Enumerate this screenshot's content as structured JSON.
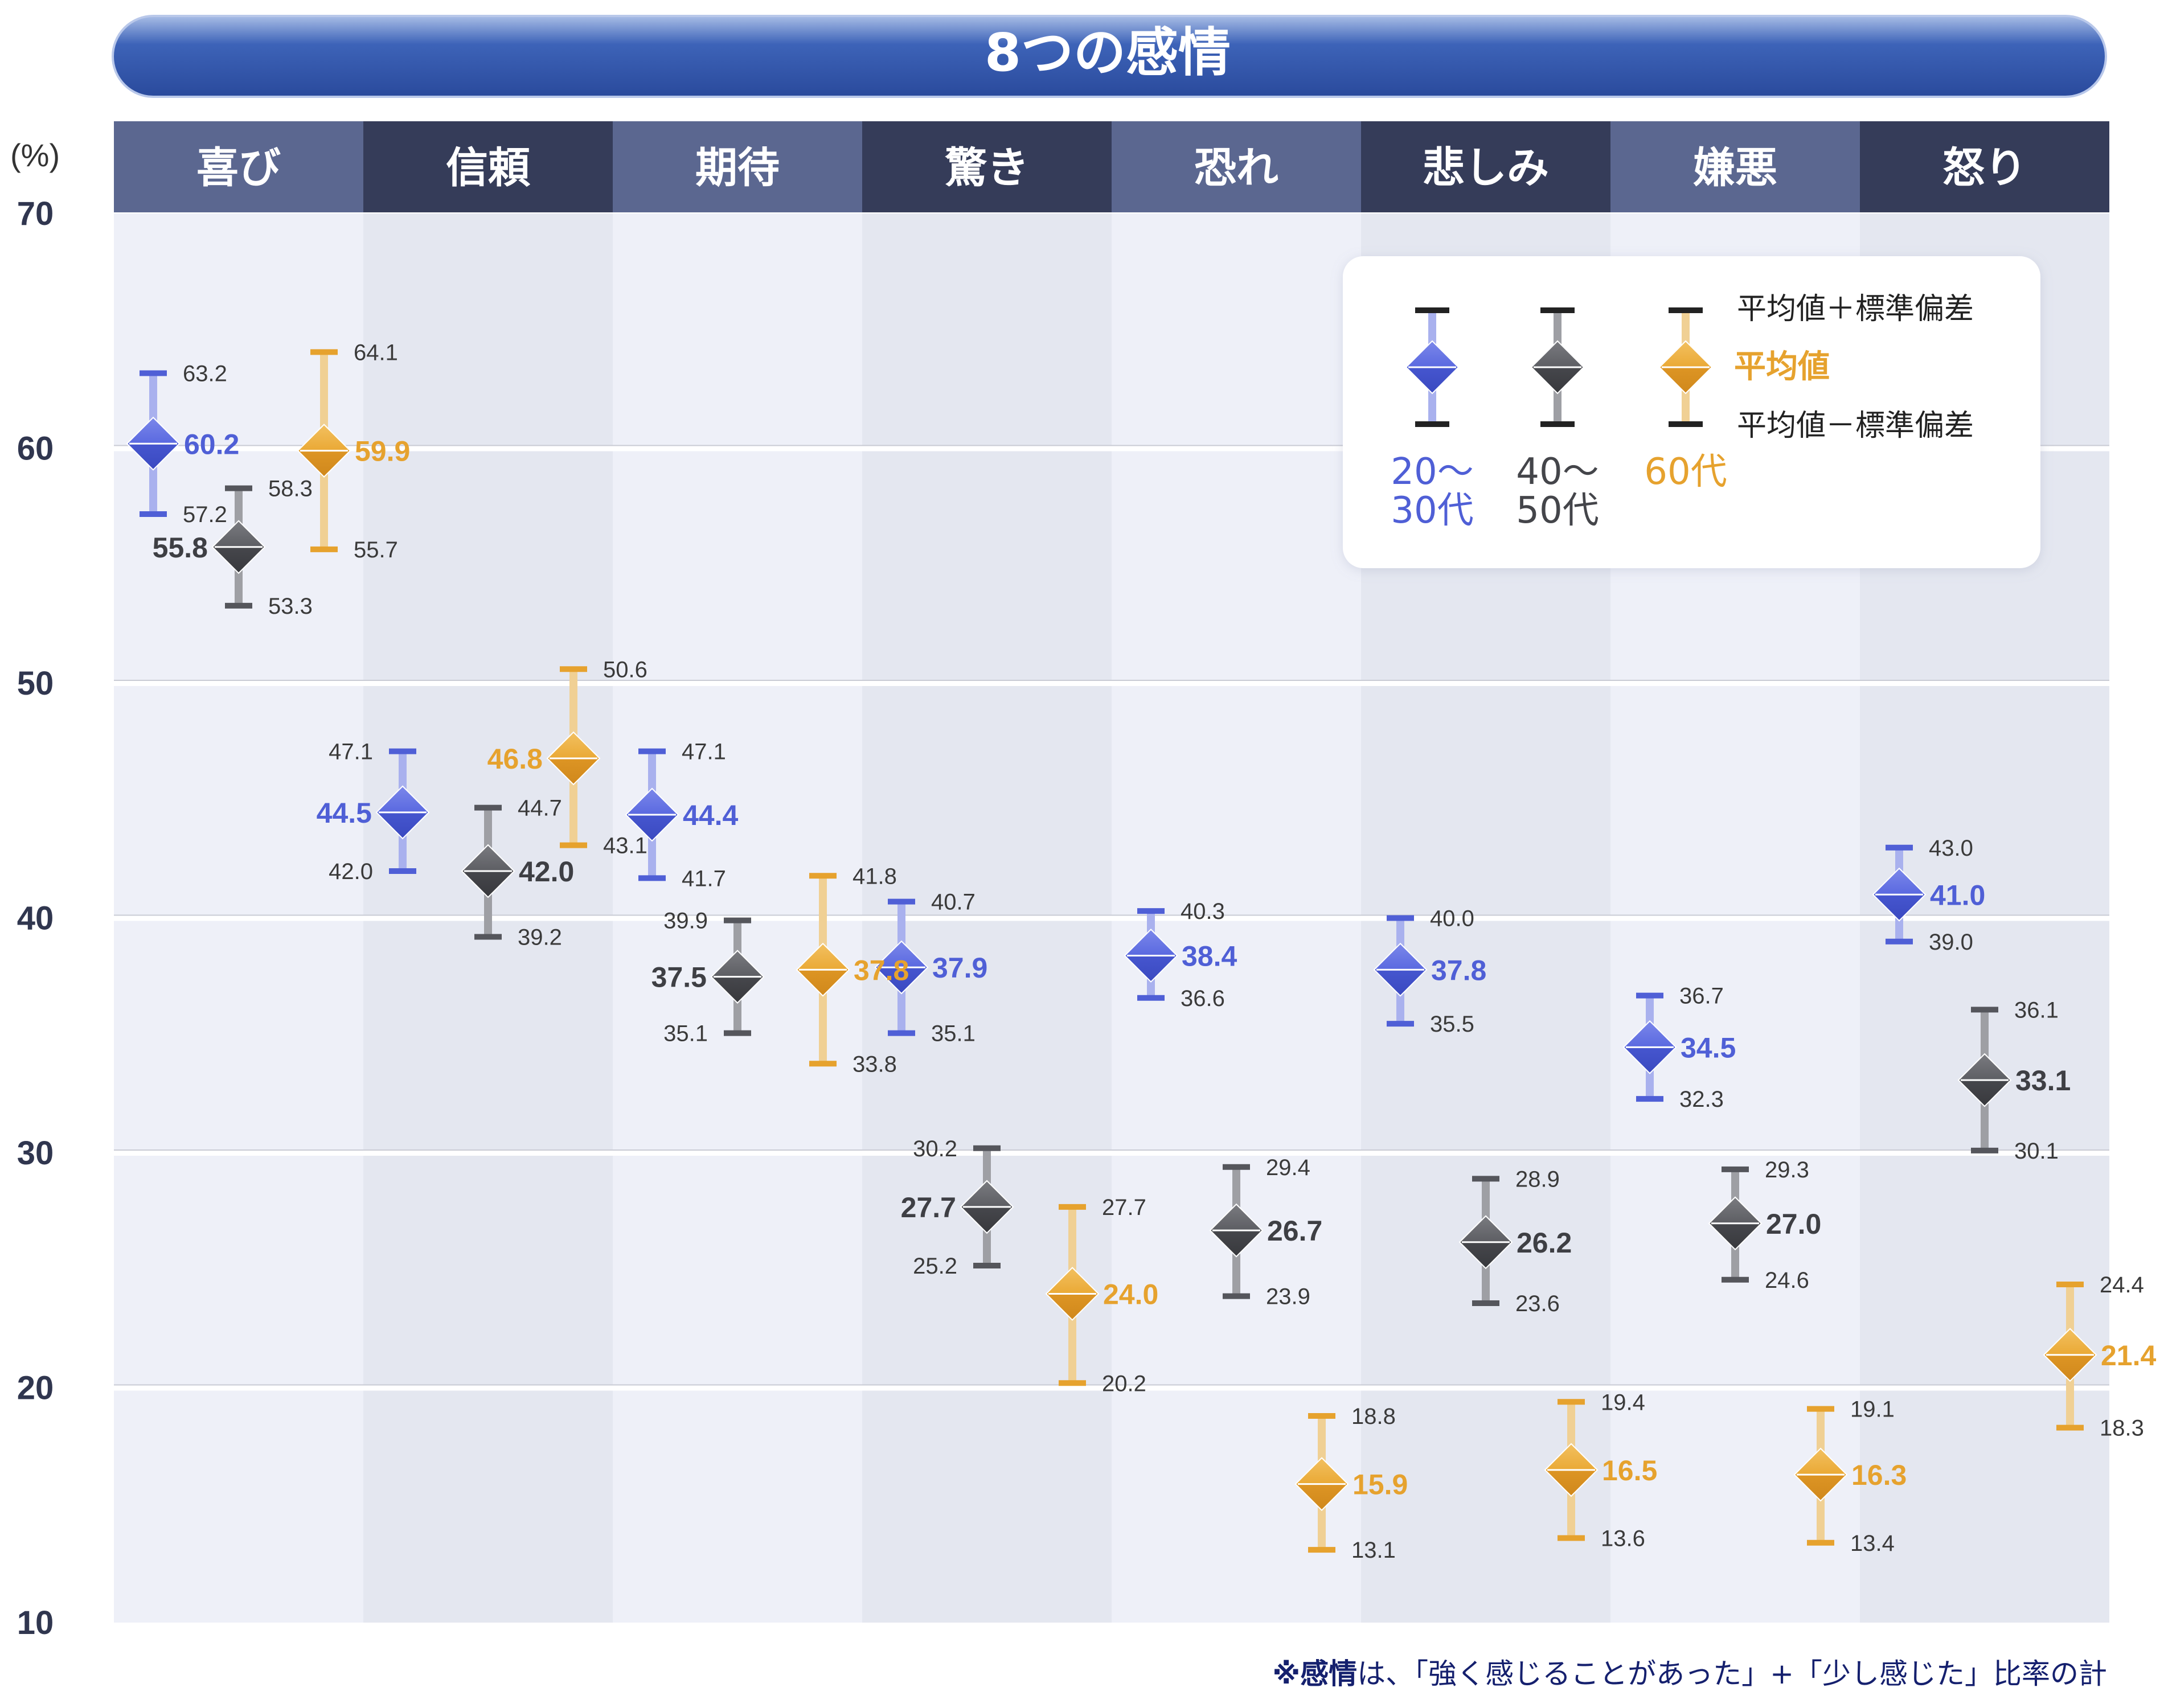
{
  "chart_data": {
    "type": "errorbar",
    "title": "8つの感情",
    "unit_label": "(%)",
    "categories": [
      "喜び",
      "信頼",
      "期待",
      "驚き",
      "恐れ",
      "悲しみ",
      "嫌悪",
      "怒り"
    ],
    "y_ticks": [
      "70",
      "60",
      "50",
      "40",
      "30",
      "20",
      "10"
    ],
    "ylim": [
      10,
      70
    ],
    "grid": true,
    "legend_position": "top-right",
    "colors": {
      "20s30s": "#4f5fd6",
      "40s50s": "#55565c",
      "60s": "#e6a22e",
      "header_light": "#5b6790",
      "header_dark": "#353c59",
      "band_light": "#eef0f8",
      "band_dark": "#e4e7f0",
      "title_bar": "#2e51a8"
    },
    "series": [
      {
        "name_line1": "20〜",
        "name_line2": "30代",
        "mean": [
          60.2,
          44.5,
          44.4,
          37.9,
          38.4,
          37.8,
          34.5,
          41.0
        ],
        "upper": [
          63.2,
          47.1,
          47.1,
          40.7,
          40.3,
          40.0,
          36.7,
          43.0
        ],
        "lower": [
          57.2,
          42.0,
          41.7,
          35.1,
          36.6,
          35.5,
          32.3,
          39.0
        ],
        "mean_label": [
          "60.2",
          "44.5",
          "44.4",
          "37.9",
          "38.4",
          "37.8",
          "34.5",
          "41.0"
        ],
        "upper_label": [
          "63.2",
          "47.1",
          "47.1",
          "40.7",
          "40.3",
          "40.0",
          "36.7",
          "43.0"
        ],
        "lower_label": [
          "57.2",
          "42.0",
          "41.7",
          "35.1",
          "36.6",
          "35.5",
          "32.3",
          "39.0"
        ]
      },
      {
        "name_line1": "40〜",
        "name_line2": "50代",
        "mean": [
          55.8,
          42.0,
          37.5,
          27.7,
          26.7,
          26.2,
          27.0,
          33.1
        ],
        "upper": [
          58.3,
          44.7,
          39.9,
          30.2,
          29.4,
          28.9,
          29.3,
          36.1
        ],
        "lower": [
          53.3,
          39.2,
          35.1,
          25.2,
          23.9,
          23.6,
          24.6,
          30.1
        ],
        "mean_label": [
          "55.8",
          "42.0",
          "37.5",
          "27.7",
          "26.7",
          "26.2",
          "27.0",
          "33.1"
        ],
        "upper_label": [
          "58.3",
          "44.7",
          "39.9",
          "30.2",
          "29.4",
          "28.9",
          "29.3",
          "36.1"
        ],
        "lower_label": [
          "53.3",
          "39.2",
          "35.1",
          "25.2",
          "23.9",
          "23.6",
          "24.6",
          "30.1"
        ]
      },
      {
        "name_line1": "60代",
        "name_line2": "",
        "mean": [
          59.9,
          46.8,
          37.8,
          24.0,
          15.9,
          16.5,
          16.3,
          21.4
        ],
        "upper": [
          64.1,
          50.6,
          41.8,
          27.7,
          18.8,
          19.4,
          19.1,
          24.4
        ],
        "lower": [
          55.7,
          43.1,
          33.8,
          20.2,
          13.1,
          13.6,
          13.4,
          18.3
        ],
        "mean_label": [
          "59.9",
          "46.8",
          "37.8",
          "24.0",
          "15.9",
          "16.5",
          "16.3",
          "21.4"
        ],
        "upper_label": [
          "64.1",
          "50.6",
          "41.8",
          "27.7",
          "18.8",
          "19.4",
          "19.1",
          "24.4"
        ],
        "lower_label": [
          "55.7",
          "43.1",
          "33.8",
          "20.2",
          "13.1",
          "13.6",
          "13.4",
          "18.3"
        ]
      }
    ],
    "legend": {
      "upper_label": "平均値＋標準偏差",
      "mean_label": "平均値",
      "lower_label": "平均値－標準偏差"
    }
  },
  "footnote": {
    "bold_part": "※感情",
    "rest": "は、「強く感じることがあった」+「少し感じた」比率の計"
  }
}
